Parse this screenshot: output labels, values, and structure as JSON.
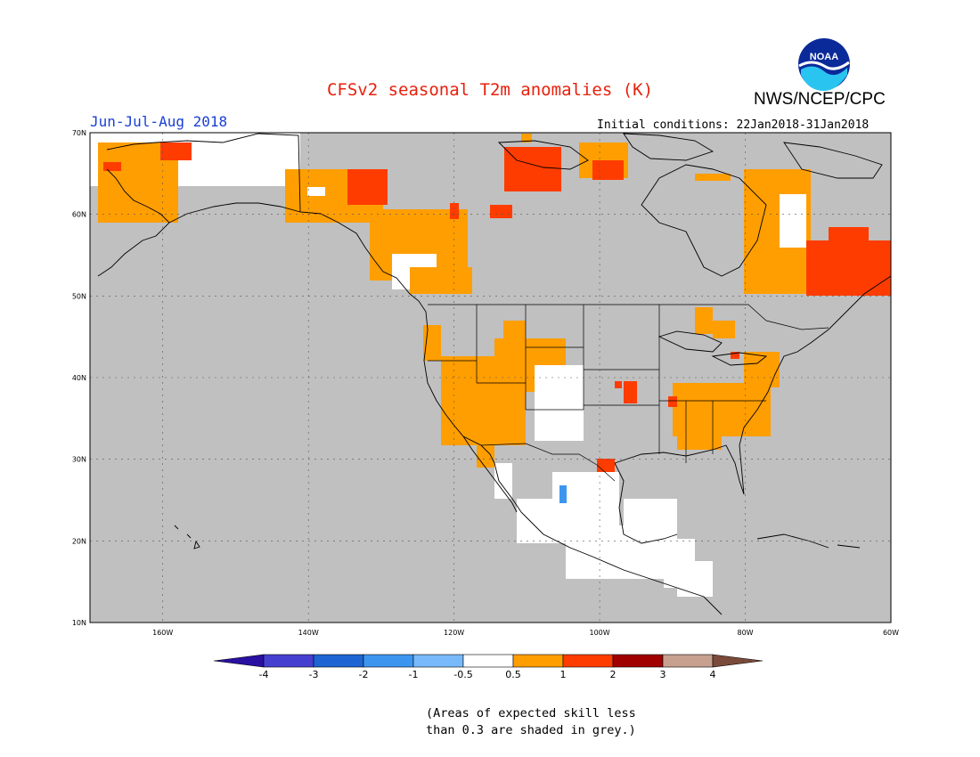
{
  "header": {
    "title": "CFSv2 seasonal T2m anomalies (K)",
    "agency": "NWS/NCEP/CPC",
    "season": "Jun-Jul-Aug 2018",
    "initial_conditions": "Initial conditions: 22Jan2018-31Jan2018",
    "logo_text": "NOAA"
  },
  "map": {
    "lon_range": [
      -170,
      -60
    ],
    "lat_range": [
      10,
      70
    ],
    "background_color": "#c0c0c0",
    "lat_labels": [
      "70N",
      "60N",
      "50N",
      "40N",
      "30N",
      "20N",
      "10N"
    ],
    "lon_labels": [
      "160W",
      "140W",
      "120W",
      "100W",
      "80W",
      "60W"
    ]
  },
  "colorbar": {
    "labels": [
      "-4",
      "-3",
      "-2",
      "-1",
      "-0.5",
      "0.5",
      "1",
      "2",
      "3",
      "4"
    ],
    "colors": [
      "#2a10a0",
      "#4640d0",
      "#1e64d2",
      "#3c96f0",
      "#78b9fa",
      "#ffffff",
      "#ff9e00",
      "#ff3c00",
      "#a00000",
      "#c8a090",
      "#7a4a3a"
    ]
  },
  "footnote": {
    "line1": "(Areas of expected skill less",
    "line2": "than 0.3 are shaded in grey.)"
  }
}
